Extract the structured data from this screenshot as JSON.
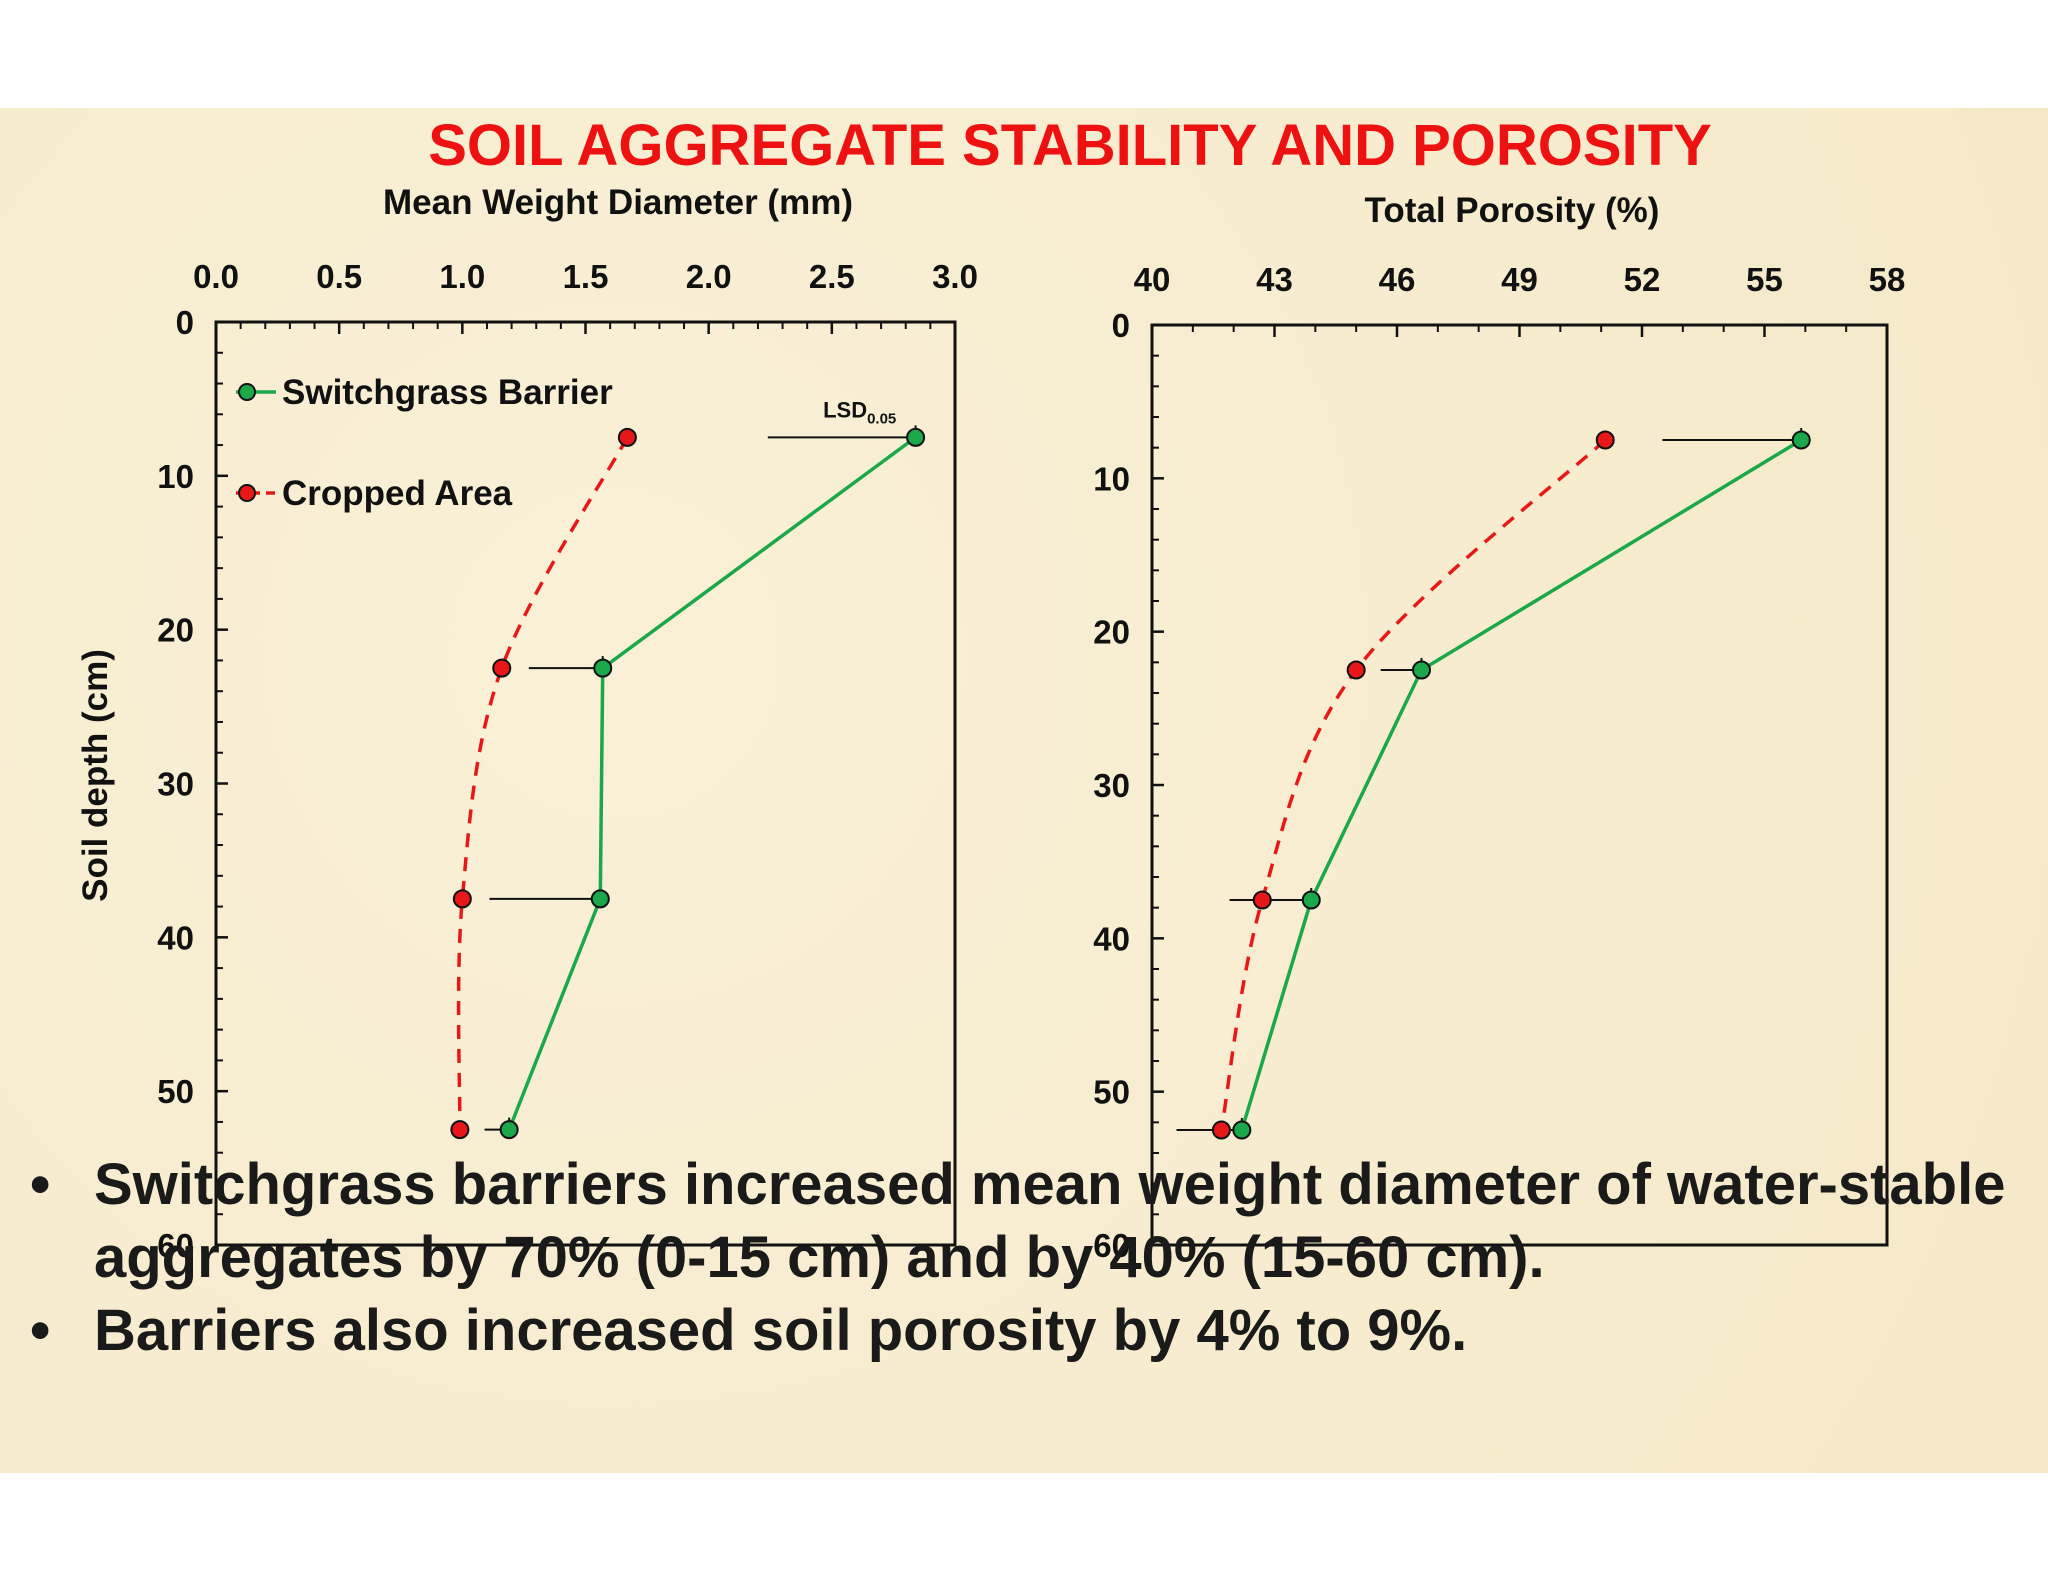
{
  "title": "SOIL AGGREGATE STABILITY AND POROSITY",
  "colors": {
    "switchgrass": "#1aa84a",
    "cropped": "#e81818",
    "title": "#ee1111",
    "background": "#f7ebcc"
  },
  "chart_data": [
    {
      "type": "line",
      "title": "Mean Weight Diameter (mm)",
      "ylabel": "Soil depth (cm)",
      "xlim": [
        0.0,
        3.0
      ],
      "ylim": [
        0,
        60
      ],
      "y_inverted": true,
      "x_axis_position": "top",
      "x_ticks": [
        "0.0",
        "0.5",
        "1.0",
        "1.5",
        "2.0",
        "2.5",
        "3.0"
      ],
      "y_ticks": [
        "0",
        "10",
        "20",
        "30",
        "40",
        "50",
        "60"
      ],
      "legend_placement": "top-left",
      "series": [
        {
          "name": "Switchgrass Barrier",
          "points": [
            [
              2.84,
              7.5
            ],
            [
              1.57,
              22.5
            ],
            [
              1.56,
              37.5
            ],
            [
              1.19,
              52.5
            ]
          ],
          "line_style": "solid"
        },
        {
          "name": "Cropped Area",
          "points": [
            [
              1.67,
              7.5
            ],
            [
              1.16,
              22.5
            ],
            [
              1.0,
              37.5
            ],
            [
              0.99,
              52.5
            ]
          ],
          "line_style": "dashed"
        }
      ],
      "lsd": {
        "label": "LSD",
        "subscript": "0.05",
        "bars": [
          [
            2.84,
            7.5,
            0.6
          ],
          [
            1.57,
            22.5,
            0.3
          ],
          [
            1.56,
            37.5,
            0.45
          ],
          [
            1.19,
            52.5,
            0.1
          ]
        ]
      }
    },
    {
      "type": "line",
      "title": "Total Porosity (%)",
      "xlim": [
        40,
        58
      ],
      "ylim": [
        0,
        60
      ],
      "y_inverted": true,
      "x_axis_position": "top",
      "x_ticks": [
        "40",
        "43",
        "46",
        "49",
        "52",
        "55",
        "58"
      ],
      "y_ticks": [
        "0",
        "10",
        "20",
        "30",
        "40",
        "50",
        "60"
      ],
      "series": [
        {
          "name": "Switchgrass Barrier",
          "points": [
            [
              55.9,
              7.5
            ],
            [
              46.6,
              22.5
            ],
            [
              43.9,
              37.5
            ],
            [
              42.2,
              52.5
            ]
          ],
          "line_style": "solid"
        },
        {
          "name": "Cropped Area",
          "points": [
            [
              51.1,
              7.5
            ],
            [
              45.0,
              22.5
            ],
            [
              42.7,
              37.5
            ],
            [
              41.7,
              52.5
            ]
          ],
          "line_style": "dashed"
        }
      ],
      "lsd": {
        "bars": [
          [
            55.9,
            7.5,
            3.4
          ],
          [
            46.6,
            22.5,
            1.0
          ],
          [
            43.9,
            37.5,
            2.0
          ],
          [
            42.2,
            52.5,
            1.6
          ]
        ]
      }
    }
  ],
  "bullets": [
    {
      "marker": "•",
      "text": "Switchgrass barriers increased mean weight diameter of water-stable aggregates by 70% (0-15 cm) and by 40% (15-60 cm)."
    },
    {
      "marker": "•",
      "text": "Barriers also increased soil porosity by 4% to 9%."
    }
  ]
}
